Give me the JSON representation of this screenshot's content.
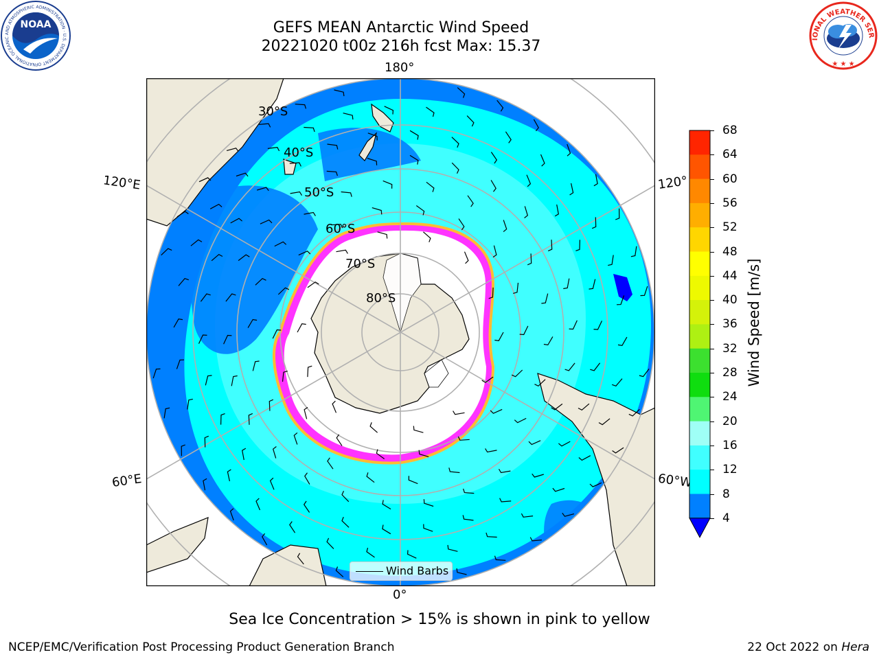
{
  "header": {
    "title_line1": "GEFS MEAN Antarctic Wind Speed",
    "title_line2": "20221020 t00z 216h fcst   Max: 15.37"
  },
  "map": {
    "longitude_labels": {
      "top": "180°",
      "bottom": "0°",
      "upper_left": "120°E",
      "lower_left": "60°E",
      "upper_right": "120°",
      "lower_right": "60°W"
    },
    "latitude_labels": [
      "30°S",
      "40°S",
      "50°S",
      "60°S",
      "70°S",
      "80°S"
    ],
    "legend_label": "Wind Barbs",
    "colors": {
      "land": "#eeeadb",
      "ocean_low": "#0080ff",
      "ocean_mid": "#00ffff",
      "ocean_high": "#40ffff",
      "sea_ice": "#ff33ff",
      "sea_ice_edge": "#ffbb33",
      "antarctic_interior": "#ffffff"
    }
  },
  "colorbar": {
    "title": "Wind Speed [m/s]",
    "ticks": [
      "4",
      "8",
      "12",
      "16",
      "20",
      "24",
      "28",
      "32",
      "36",
      "40",
      "44",
      "48",
      "52",
      "56",
      "60",
      "64",
      "68"
    ],
    "colors": [
      "#0080ff",
      "#00ffff",
      "#40ffff",
      "#9ffff6",
      "#4ff573",
      "#0fdd0f",
      "#3ce02f",
      "#aef013",
      "#d4f20a",
      "#eef900",
      "#ffff00",
      "#ffd600",
      "#ffae00",
      "#ff8800",
      "#ff5500",
      "#ff2500"
    ],
    "extend_color": "#0000ff"
  },
  "footer": {
    "note": "Sea Ice Concentration > 15% is shown in pink to yellow",
    "left": "NCEP/EMC/Verification Post Processing Product Generation Branch",
    "right_date": "22 Oct 2022 on ",
    "right_host": "Hera"
  },
  "logos": {
    "noaa_text": "NOAA",
    "noaa_ring_text": "NATIONAL OCEANIC AND ATMOSPHERIC ADMINISTRATION · U.S. DEPARTMENT OF COMMERCE",
    "nws_ring_text": "NATIONAL WEATHER SERVICE"
  }
}
